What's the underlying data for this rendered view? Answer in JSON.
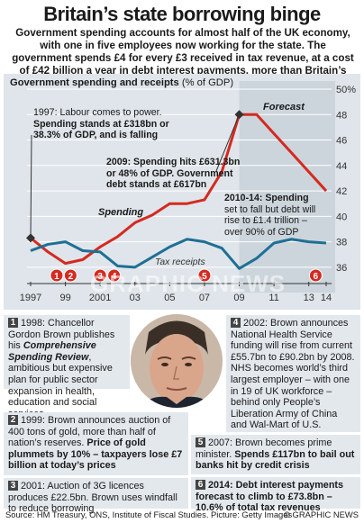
{
  "title": "Britain’s state borrowing binge",
  "intro": "Government spending accounts for almost half of the UK economy, with one in five employees now working for the state. The government spends £4 for every £3 received in tax revenue, at a cost of £42 billion a year in debt interest payments, more than Britain’s annual defence bill",
  "chart_title_bold": "Government spending and receipts",
  "chart_title_unit": "(% of GDP)",
  "annotations": {
    "a1997_line1": "1997: Labour comes to power.",
    "a1997_line2": "Spending stands at £318bn or",
    "a1997_line3": "38.3% of GDP, and is falling",
    "a2009_line1": "2009: Spending hits £631.3bn",
    "a2009_line2": "or 48% of GDP. Government",
    "a2009_line3": "debt stands at £617bn",
    "a2010_line1": "2010-14: Spending",
    "a2010_line2": "set to fall but debt will",
    "a2010_line3": "rise to £1.4 trillion –",
    "a2010_line4": "over 90% of GDP",
    "forecast": "Forecast",
    "spending": "Spending",
    "receipts": "Tax receipts",
    "watermark": "GRAPHIC NEWS"
  },
  "chart_data": {
    "type": "line",
    "title": "Government spending and receipts",
    "ylabel": "% of GDP",
    "ylim": [
      35,
      50
    ],
    "x_tick_labels": [
      "1997",
      "99",
      "2001",
      "03",
      "05",
      "07",
      "09",
      "11",
      "13",
      "14"
    ],
    "y_tick_labels": [
      "50%",
      "48",
      "46",
      "44",
      "42",
      "40",
      "38",
      "36"
    ],
    "x": [
      1997,
      1998,
      1999,
      2000,
      2001,
      2002,
      2003,
      2004,
      2005,
      2006,
      2007,
      2008,
      2009,
      2010,
      2011,
      2012,
      2013,
      2014
    ],
    "series": [
      {
        "name": "Spending",
        "color": "#d42a20",
        "values": [
          38.3,
          37.2,
          36.3,
          36.6,
          37.6,
          38.4,
          39.5,
          40.1,
          41.0,
          41.0,
          41.3,
          43.5,
          48.0,
          48.0,
          46.5,
          45.0,
          43.5,
          42.0
        ]
      },
      {
        "name": "Tax receipts",
        "color": "#1f6f95",
        "values": [
          37.3,
          37.8,
          38.0,
          37.3,
          37.2,
          36.1,
          36.0,
          36.8,
          37.6,
          38.2,
          38.0,
          37.5,
          35.9,
          36.7,
          37.9,
          38.2,
          38.0,
          37.9
        ]
      }
    ],
    "markers": [
      {
        "label": "1",
        "x": 1998.5
      },
      {
        "label": "2",
        "x": 1999.3
      },
      {
        "label": "3",
        "x": 2001.0
      },
      {
        "label": "4",
        "x": 2001.8
      },
      {
        "label": "5",
        "x": 2007.0
      },
      {
        "label": "6",
        "x": 2013.4
      }
    ]
  },
  "panels": {
    "p1": {
      "num": "1",
      "head": "1998:",
      "text1": "Chancellor Gordon Brown publishes his",
      "bold_italic": "Comprehensive Spending Review",
      "text2": ", ambitious but expensive plan for public sector expansion in health, education and social services"
    },
    "p2": {
      "num": "2",
      "text1": "1999: Brown announces auction of 400 tons of gold, more than half of nation’s reserves.",
      "bold": "Price of gold plummets by 10% – taxpayers lose £7 billion at today’s prices"
    },
    "p3": {
      "num": "3",
      "text1": "2001: Auction of 3G licences produces £22.5bn. Brown uses windfall to reduce borrowing"
    },
    "p4": {
      "num": "4",
      "text1": "2002: Brown announces National Health Service funding will rise from current £55.7bn to £90.2bn by 2008. NHS becomes world’s third largest employer – with one in 19 of UK workforce – behind only People’s Liberation Army of China and Wal-Mart of U.S."
    },
    "p5": {
      "num": "5",
      "text1": "2007: Brown becomes prime minister.",
      "bold": "Spends £117bn to bail out banks hit by credit crisis"
    },
    "p6": {
      "num": "6",
      "bold": "2014: Debt interest payments forecast to climb to £73.8bn – 10.6% of total tax revenues"
    }
  },
  "footer": {
    "source": "Source: HM Treasury, ONS, Institute of Fiscal Studies. Picture: Getty Images",
    "credit": "© GRAPHIC NEWS"
  },
  "colors": {
    "spending": "#d42a20",
    "receipts": "#1f6f95",
    "panel_bg": "#e3e8ed",
    "chart_bg": "#dfe5ea"
  }
}
